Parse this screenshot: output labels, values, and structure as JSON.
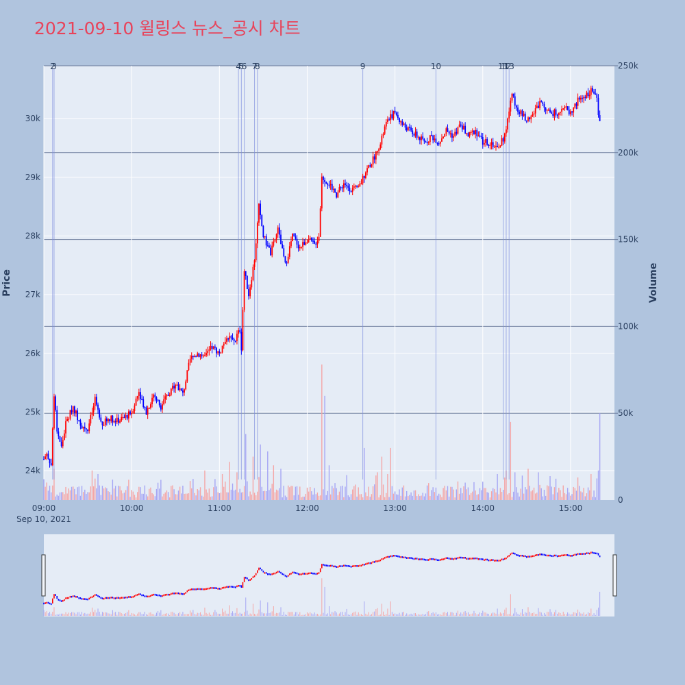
{
  "title": "2021-09-10 윌링스 뉴스_공시 차트",
  "chart_data": {
    "type": "candlestick",
    "date_label": "Sep 10, 2021",
    "x_range": [
      "09:00",
      "15:30"
    ],
    "x_ticks": [
      "09:00",
      "10:00",
      "11:00",
      "12:00",
      "13:00",
      "14:00",
      "15:00"
    ],
    "y_price": {
      "title": "Price",
      "range": [
        23500,
        30900
      ],
      "ticks": [
        24000,
        25000,
        26000,
        27000,
        28000,
        29000,
        30000
      ],
      "tick_labels": [
        "24k",
        "25k",
        "26k",
        "27k",
        "28k",
        "29k",
        "30k"
      ]
    },
    "y_volume": {
      "title": "Volume",
      "range": [
        0,
        250000
      ],
      "ticks": [
        0,
        50000,
        100000,
        150000,
        200000,
        250000
      ],
      "tick_labels": [
        "0",
        "50k",
        "100k",
        "150k",
        "200k",
        "250k"
      ]
    },
    "colors": {
      "up": "#ff0000",
      "down": "#0000ff",
      "up_volume": "#f4a6a6",
      "down_volume": "#a6a6f4",
      "marker_line": "#7f8fdf"
    },
    "price_path": [
      [
        "09:00",
        24200
      ],
      [
        "09:02",
        24300
      ],
      [
        "09:05",
        24100
      ],
      [
        "09:07",
        25300
      ],
      [
        "09:09",
        24700
      ],
      [
        "09:12",
        24400
      ],
      [
        "09:15",
        24800
      ],
      [
        "09:20",
        25100
      ],
      [
        "09:25",
        24800
      ],
      [
        "09:30",
        24700
      ],
      [
        "09:35",
        25200
      ],
      [
        "09:40",
        24800
      ],
      [
        "09:45",
        24900
      ],
      [
        "09:50",
        24850
      ],
      [
        "09:55",
        24900
      ],
      [
        "10:00",
        25000
      ],
      [
        "10:05",
        25350
      ],
      [
        "10:10",
        25000
      ],
      [
        "10:15",
        25300
      ],
      [
        "10:20",
        25100
      ],
      [
        "10:25",
        25300
      ],
      [
        "10:30",
        25500
      ],
      [
        "10:35",
        25300
      ],
      [
        "10:40",
        25900
      ],
      [
        "10:45",
        26000
      ],
      [
        "10:50",
        25950
      ],
      [
        "10:55",
        26100
      ],
      [
        "11:00",
        26000
      ],
      [
        "11:05",
        26300
      ],
      [
        "11:10",
        26200
      ],
      [
        "11:14",
        26400
      ],
      [
        "11:15",
        26100
      ],
      [
        "11:17",
        27400
      ],
      [
        "11:20",
        27000
      ],
      [
        "11:24",
        27600
      ],
      [
        "11:27",
        28500
      ],
      [
        "11:30",
        28000
      ],
      [
        "11:35",
        27700
      ],
      [
        "11:40",
        28100
      ],
      [
        "11:45",
        27500
      ],
      [
        "11:50",
        28000
      ],
      [
        "11:55",
        27800
      ],
      [
        "12:00",
        27950
      ],
      [
        "12:05",
        27850
      ],
      [
        "12:08",
        28000
      ],
      [
        "12:10",
        29000
      ],
      [
        "12:15",
        28900
      ],
      [
        "12:20",
        28700
      ],
      [
        "12:25",
        28900
      ],
      [
        "12:30",
        28800
      ],
      [
        "12:35",
        28800
      ],
      [
        "12:40",
        29100
      ],
      [
        "12:45",
        29300
      ],
      [
        "12:50",
        29600
      ],
      [
        "12:55",
        30000
      ],
      [
        "13:00",
        30100
      ],
      [
        "13:05",
        29900
      ],
      [
        "13:10",
        29800
      ],
      [
        "13:15",
        29700
      ],
      [
        "13:20",
        29600
      ],
      [
        "13:25",
        29700
      ],
      [
        "13:30",
        29600
      ],
      [
        "13:35",
        29800
      ],
      [
        "13:40",
        29700
      ],
      [
        "13:45",
        29900
      ],
      [
        "13:50",
        29700
      ],
      [
        "13:55",
        29800
      ],
      [
        "14:00",
        29600
      ],
      [
        "14:05",
        29600
      ],
      [
        "14:10",
        29500
      ],
      [
        "14:15",
        29700
      ],
      [
        "14:20",
        30400
      ],
      [
        "14:25",
        30100
      ],
      [
        "14:30",
        30000
      ],
      [
        "14:35",
        30100
      ],
      [
        "14:40",
        30300
      ],
      [
        "14:45",
        30100
      ],
      [
        "14:50",
        30100
      ],
      [
        "14:55",
        30200
      ],
      [
        "15:00",
        30100
      ],
      [
        "15:05",
        30300
      ],
      [
        "15:10",
        30400
      ],
      [
        "15:15",
        30500
      ],
      [
        "15:18",
        30300
      ],
      [
        "15:20",
        29900
      ]
    ],
    "volume_spikes": [
      [
        "09:00",
        12000
      ],
      [
        "09:07",
        18000
      ],
      [
        "09:33",
        17000
      ],
      [
        "09:37",
        15000
      ],
      [
        "10:40",
        11000
      ],
      [
        "10:50",
        17000
      ],
      [
        "11:02",
        15000
      ],
      [
        "11:07",
        22000
      ],
      [
        "11:12",
        16000
      ],
      [
        "11:18",
        38000
      ],
      [
        "11:23",
        25000
      ],
      [
        "11:28",
        32000
      ],
      [
        "11:33",
        28000
      ],
      [
        "11:37",
        20000
      ],
      [
        "11:42",
        18000
      ],
      [
        "12:10",
        78000
      ],
      [
        "12:12",
        60000
      ],
      [
        "12:15",
        20000
      ],
      [
        "12:39",
        30000
      ],
      [
        "12:48",
        16000
      ],
      [
        "12:51",
        25000
      ],
      [
        "12:55",
        15000
      ],
      [
        "12:57",
        30000
      ],
      [
        "14:10",
        15000
      ],
      [
        "14:16",
        17000
      ],
      [
        "14:19",
        45000
      ],
      [
        "14:22",
        16000
      ],
      [
        "14:31",
        18000
      ],
      [
        "14:38",
        16000
      ],
      [
        "15:05",
        13000
      ],
      [
        "15:14",
        15000
      ],
      [
        "15:19",
        17000
      ],
      [
        "15:20",
        50000
      ],
      [
        "15:21",
        23000
      ]
    ],
    "markers": [
      {
        "label": "2",
        "time": "09:06"
      },
      {
        "label": "3",
        "time": "09:07"
      },
      {
        "label": "4",
        "time": "11:13"
      },
      {
        "label": "5",
        "time": "11:15"
      },
      {
        "label": "6",
        "time": "11:17"
      },
      {
        "label": "7",
        "time": "11:24"
      },
      {
        "label": "8",
        "time": "11:26"
      },
      {
        "label": "9",
        "time": "12:38"
      },
      {
        "label": "10",
        "time": "13:28"
      },
      {
        "label": "11",
        "time": "14:14"
      },
      {
        "label": "12",
        "time": "14:16"
      },
      {
        "label": "13",
        "time": "14:18"
      }
    ]
  }
}
